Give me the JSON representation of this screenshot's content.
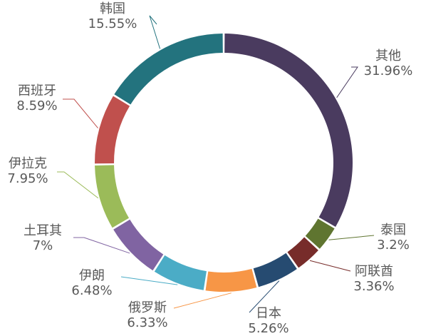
{
  "chart_data": {
    "type": "pie",
    "variant": "donut",
    "title": "",
    "legend": "none",
    "slices": [
      {
        "name": "其他",
        "value": 31.96,
        "label": "31.96%",
        "color": "#4A3B5F"
      },
      {
        "name": "泰国",
        "value": 3.2,
        "label": "3.2%",
        "color": "#5F7530"
      },
      {
        "name": "阿联酋",
        "value": 3.36,
        "label": "3.36%",
        "color": "#772C2A"
      },
      {
        "name": "日本",
        "value": 5.26,
        "label": "5.26%",
        "color": "#264B71"
      },
      {
        "name": "俄罗斯",
        "value": 6.33,
        "label": "6.33%",
        "color": "#F79646"
      },
      {
        "name": "伊朗",
        "value": 6.48,
        "label": "6.48%",
        "color": "#4BACC6"
      },
      {
        "name": "土耳其",
        "value": 7,
        "label": "7%",
        "color": "#8064A2"
      },
      {
        "name": "伊拉克",
        "value": 7.95,
        "label": "7.95%",
        "color": "#9BBB59"
      },
      {
        "name": "西班牙",
        "value": 8.59,
        "label": "8.59%",
        "color": "#C0504D"
      },
      {
        "name": "韩国",
        "value": 15.55,
        "label": "15.55%",
        "color": "#4F81BD"
      }
    ],
    "other_color": "#23737E"
  }
}
